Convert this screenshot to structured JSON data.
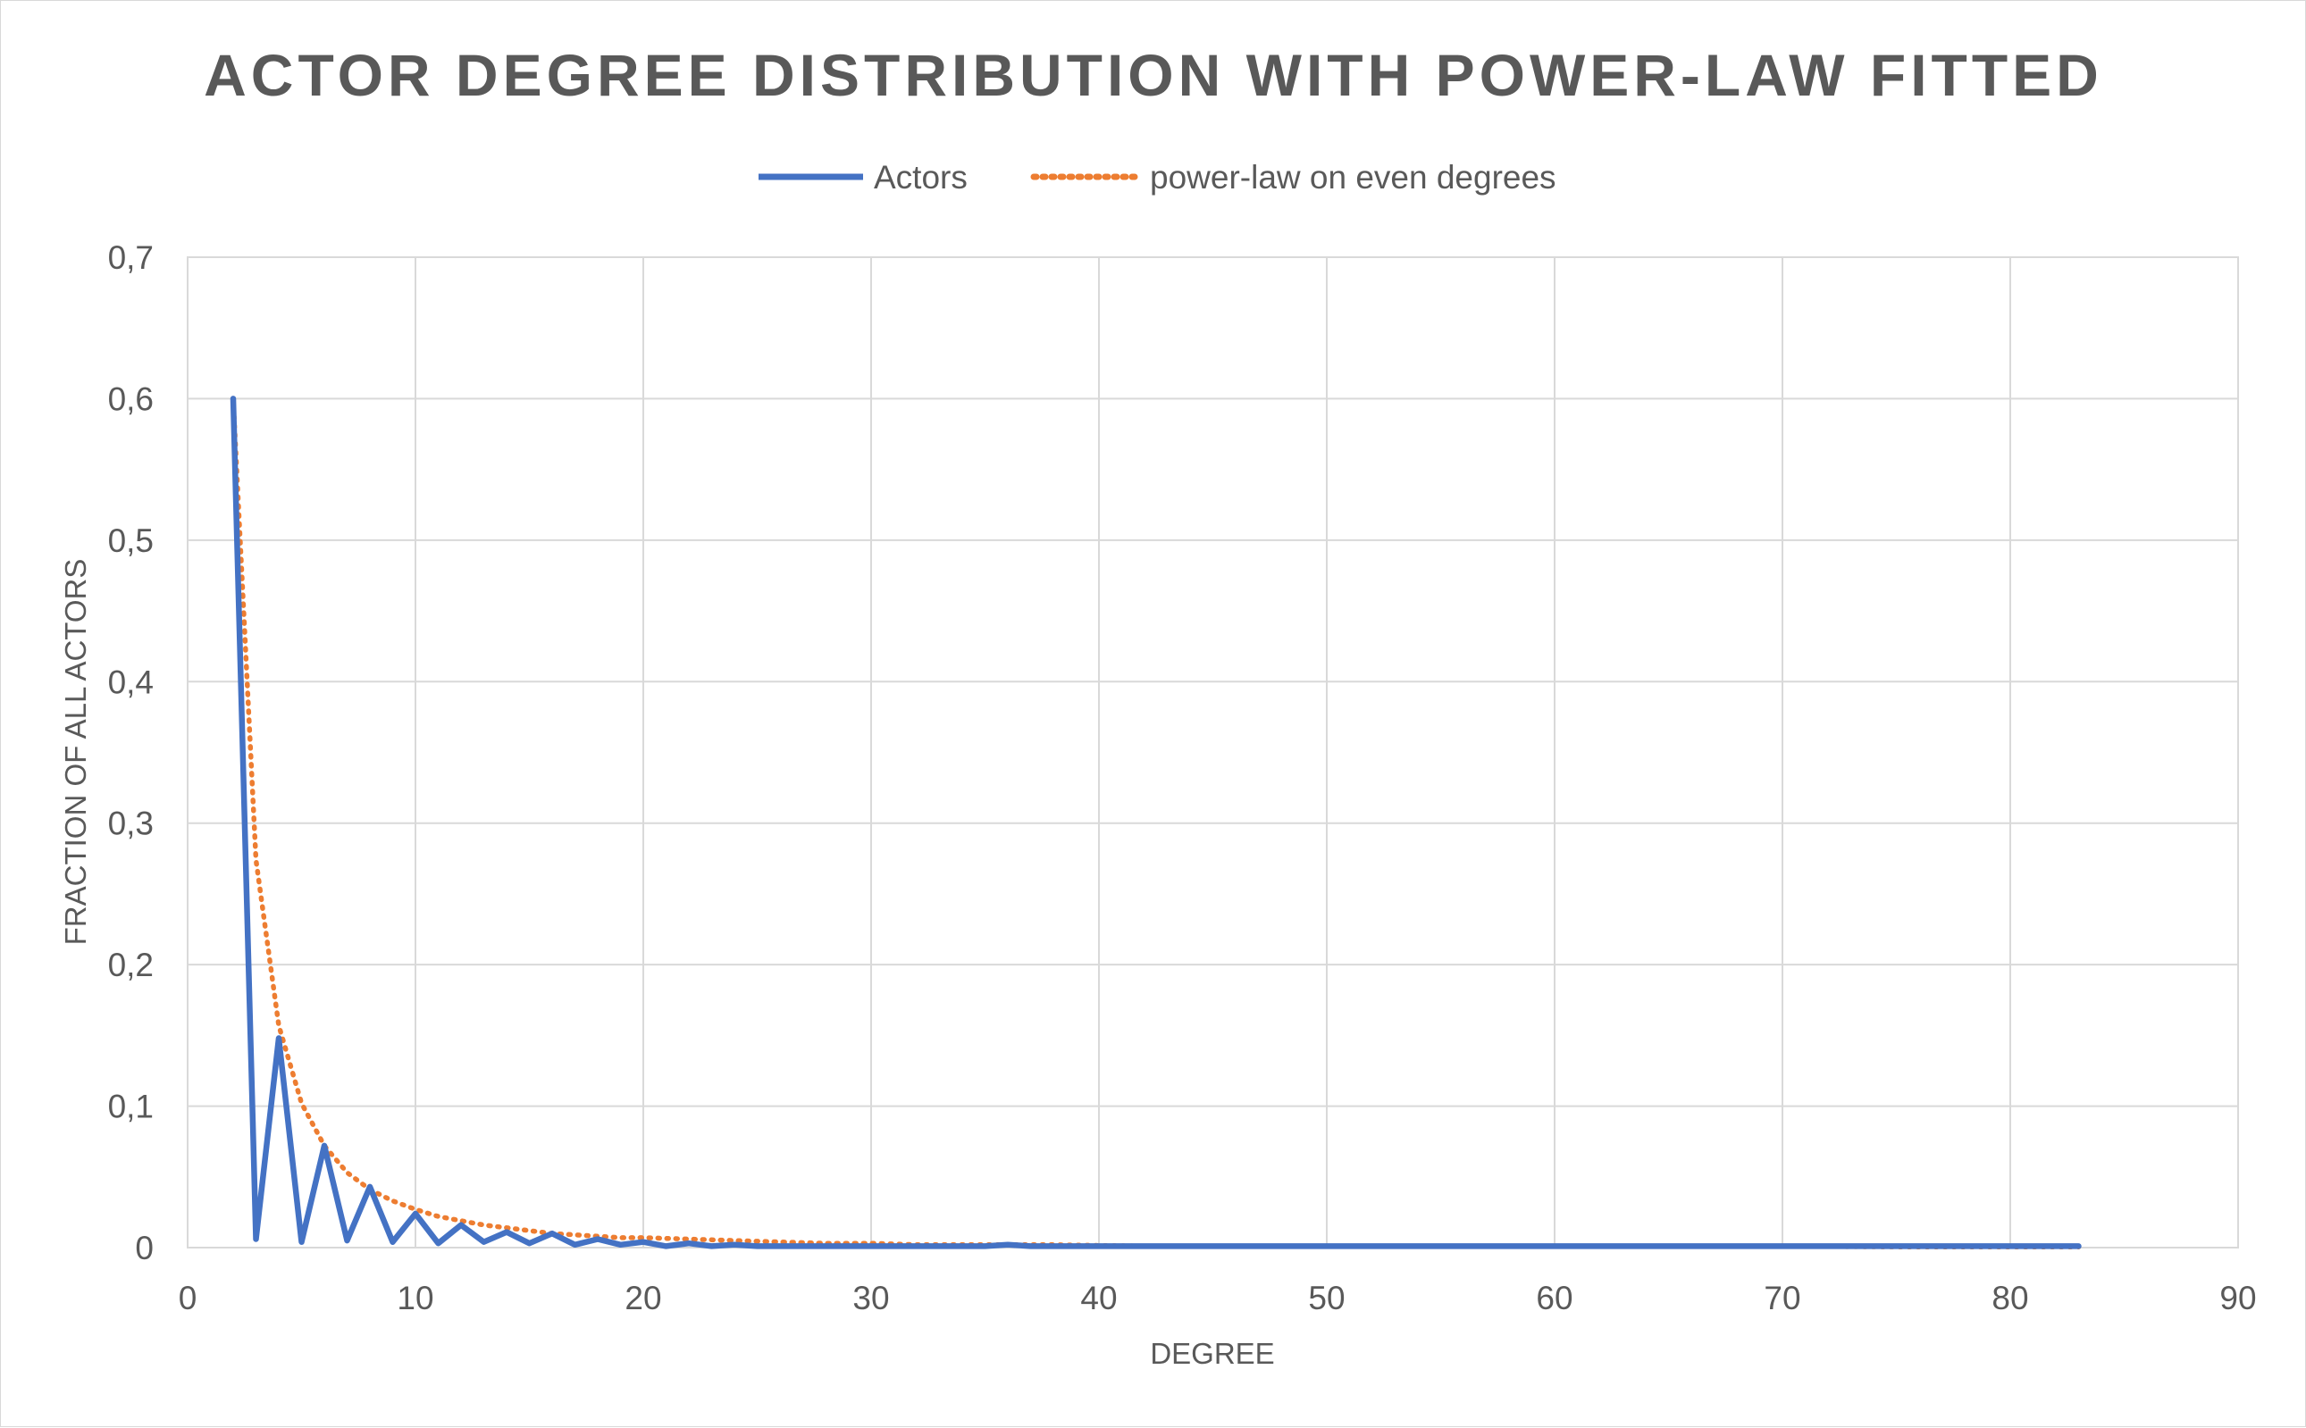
{
  "chart_data": {
    "type": "line",
    "title": "ACTOR DEGREE DISTRIBUTION WITH POWER-LAW FITTED",
    "xlabel": "DEGREE",
    "ylabel": "FRACTION OF ALL ACTORS",
    "xlim": [
      0,
      90
    ],
    "ylim": [
      0,
      0.7
    ],
    "x_ticks": [
      0,
      10,
      20,
      30,
      40,
      50,
      60,
      70,
      80,
      90
    ],
    "x_tick_labels": [
      "0",
      "10",
      "20",
      "30",
      "40",
      "50",
      "60",
      "70",
      "80",
      "90"
    ],
    "y_ticks": [
      0,
      0.1,
      0.2,
      0.3,
      0.4,
      0.5,
      0.6,
      0.7
    ],
    "y_tick_labels": [
      "0",
      "0,1",
      "0,2",
      "0,3",
      "0,4",
      "0,5",
      "0,6",
      "0,7"
    ],
    "grid": true,
    "legend_position": "top",
    "series": [
      {
        "name": "Actors",
        "style": "solid",
        "color": "#4472c4",
        "x": [
          2,
          3,
          4,
          5,
          6,
          7,
          8,
          9,
          10,
          11,
          12,
          13,
          14,
          15,
          16,
          17,
          18,
          19,
          20,
          21,
          22,
          23,
          24,
          25,
          26,
          27,
          28,
          29,
          30,
          31,
          32,
          33,
          34,
          35,
          36,
          37,
          38,
          39,
          40,
          41,
          42,
          43,
          44,
          45,
          46,
          47,
          48,
          49,
          50,
          51,
          52,
          53,
          54,
          55,
          56,
          57,
          58,
          59,
          60,
          61,
          62,
          63,
          64,
          65,
          66,
          67,
          68,
          69,
          70,
          71,
          72,
          73,
          74,
          75,
          76,
          77,
          78,
          79,
          80,
          81,
          82,
          83
        ],
        "values": [
          0.6,
          0.006,
          0.148,
          0.004,
          0.072,
          0.005,
          0.043,
          0.004,
          0.024,
          0.003,
          0.016,
          0.004,
          0.011,
          0.003,
          0.01,
          0.002,
          0.006,
          0.002,
          0.004,
          0.001,
          0.003,
          0.001,
          0.002,
          0.001,
          0.001,
          0.001,
          0.001,
          0.001,
          0.001,
          0.001,
          0.001,
          0.001,
          0.001,
          0.001,
          0.002,
          0.001,
          0.001,
          0.001,
          0.001,
          0.001,
          0.001,
          0.001,
          0.001,
          0.001,
          0.001,
          0.001,
          0.001,
          0.001,
          0.001,
          0.001,
          0.001,
          0.001,
          0.001,
          0.001,
          0.001,
          0.001,
          0.001,
          0.001,
          0.001,
          0.001,
          0.001,
          0.001,
          0.001,
          0.001,
          0.001,
          0.001,
          0.001,
          0.001,
          0.001,
          0.001,
          0.001,
          0.001,
          0.001,
          0.001,
          0.001,
          0.001,
          0.001,
          0.001,
          0.001,
          0.001,
          0.001,
          0.001
        ]
      },
      {
        "name": "power-law on even degrees",
        "style": "dotted",
        "color": "#ed7d31",
        "x": [
          2,
          3,
          4,
          5,
          6,
          7,
          8,
          9,
          10,
          11,
          12,
          13,
          14,
          15,
          16,
          17,
          18,
          19,
          20,
          22,
          24,
          26,
          28,
          30,
          32,
          35,
          38,
          42,
          46,
          50,
          55,
          60,
          65,
          70,
          75,
          80,
          83
        ],
        "values": [
          0.6,
          0.274,
          0.157,
          0.102,
          0.072,
          0.053,
          0.041,
          0.033,
          0.027,
          0.022,
          0.019,
          0.016,
          0.014,
          0.012,
          0.01,
          0.009,
          0.008,
          0.007,
          0.007,
          0.006,
          0.005,
          0.004,
          0.003,
          0.003,
          0.002,
          0.002,
          0.002,
          0.001,
          0.001,
          0.001,
          0.001,
          0.001,
          0.001,
          0.001,
          0.0005,
          0.0005,
          0.0005
        ]
      }
    ]
  }
}
